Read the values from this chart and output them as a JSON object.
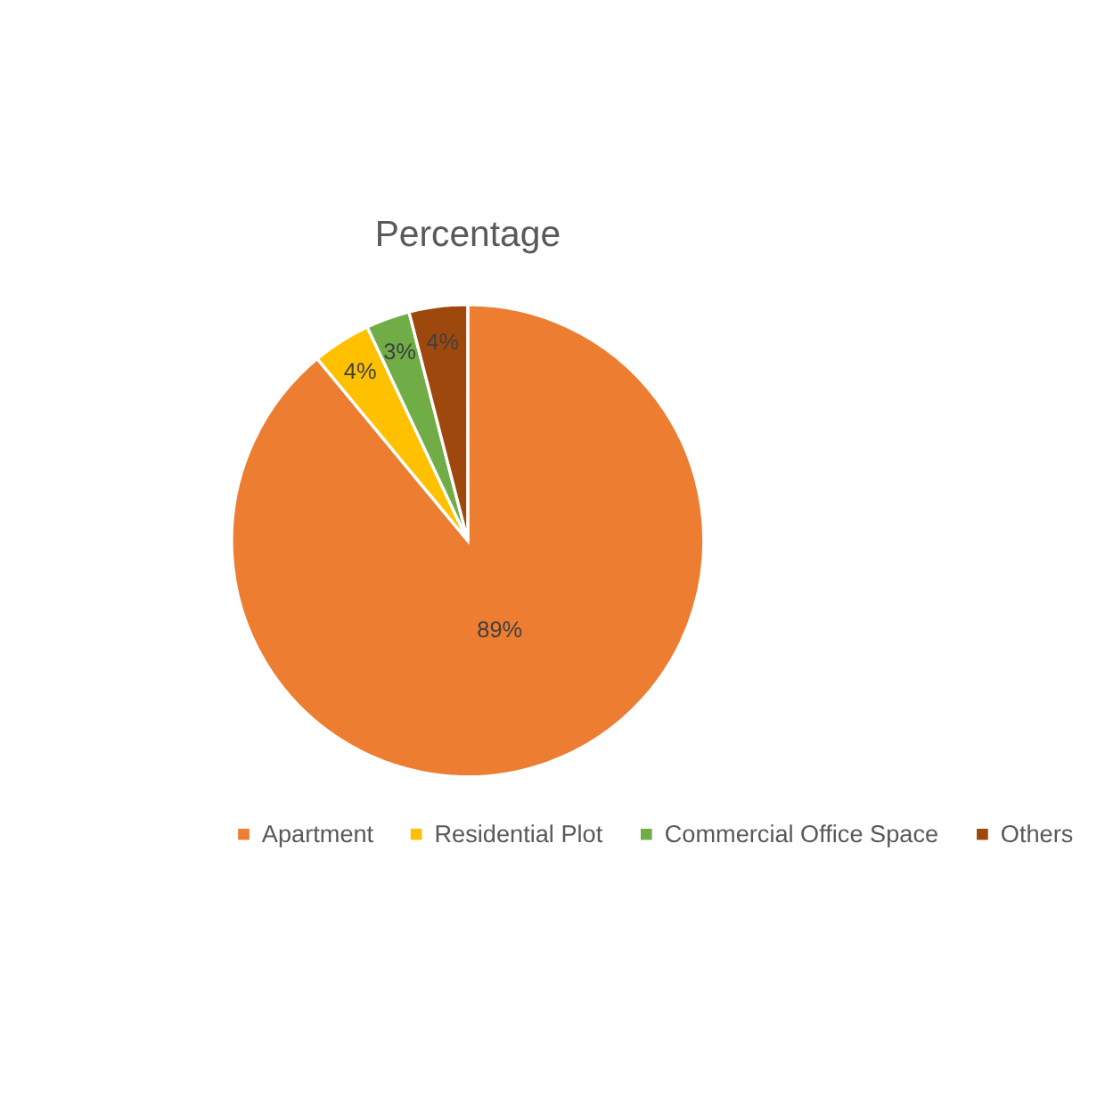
{
  "chart_data": {
    "type": "pie",
    "title": "Percentage",
    "categories": [
      "Apartment",
      "Residential Plot",
      "Commercial Office Space",
      "Others"
    ],
    "values": [
      89,
      4,
      3,
      4
    ],
    "colors": [
      "#ed7d31",
      "#ffc000",
      "#70ad47",
      "#9e480e"
    ],
    "value_labels": [
      "89%",
      "4%",
      "3%",
      "4%"
    ],
    "legend": "bottom"
  }
}
